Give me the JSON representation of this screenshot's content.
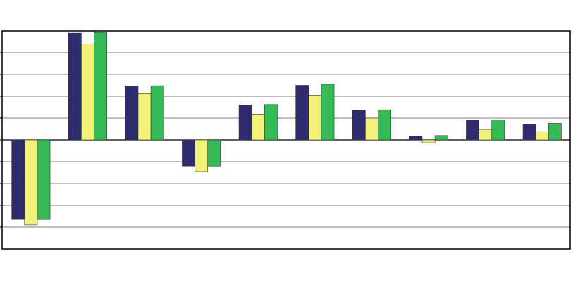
{
  "chart_data": {
    "type": "bar",
    "title": "",
    "xlabel": "",
    "ylabel": "",
    "ylim": [
      -5,
      5
    ],
    "grid": true,
    "legend": "none",
    "categories": [
      "",
      "",
      "",
      "",
      "",
      "",
      "",
      "",
      "",
      ""
    ],
    "series": [
      {
        "color": "#2e2c6e",
        "values": [
          -3.65,
          4.9,
          2.45,
          -1.2,
          1.6,
          2.5,
          1.35,
          0.18,
          0.92,
          0.72
        ]
      },
      {
        "color": "#f2f27a",
        "values": [
          -3.9,
          4.4,
          2.15,
          -1.45,
          1.18,
          2.05,
          1.0,
          -0.13,
          0.48,
          0.38
        ]
      },
      {
        "color": "#35bb55",
        "values": [
          -3.65,
          4.92,
          2.48,
          -1.2,
          1.62,
          2.55,
          1.38,
          0.2,
          0.92,
          0.76
        ]
      }
    ],
    "colors": {
      "gridline": "#7f7f7f",
      "frame": "#000000",
      "baseline": "#000000"
    }
  }
}
